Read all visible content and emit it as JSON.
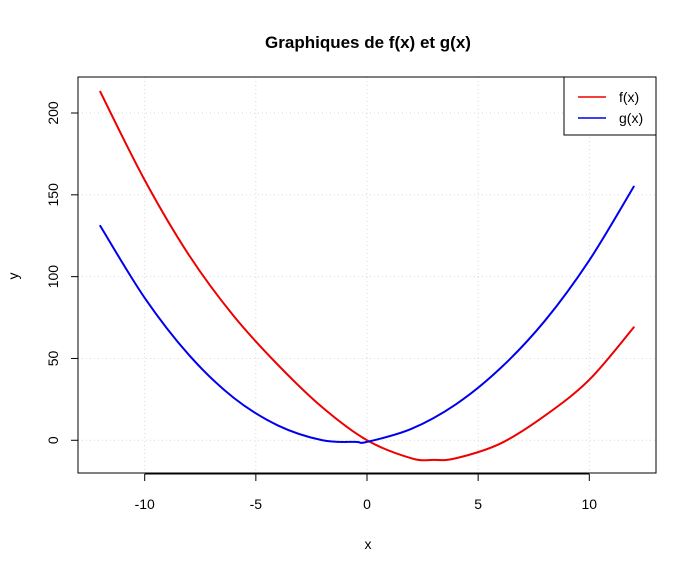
{
  "chart_data": {
    "type": "line",
    "title": "Graphiques de f(x) et g(x)",
    "xlabel": "x",
    "ylabel": "y",
    "xlim": [
      -13,
      13
    ],
    "ylim": [
      -20,
      222
    ],
    "xticks": [
      -10,
      -5,
      0,
      5,
      10
    ],
    "yticks": [
      0,
      50,
      100,
      150,
      200
    ],
    "grid": true,
    "legend_position": "top-right",
    "series": [
      {
        "name": "f(x)",
        "color": "#ee0000",
        "x": [
          -12,
          -10,
          -8,
          -6,
          -4,
          -2,
          0,
          2,
          3,
          4,
          6,
          8,
          10,
          12
        ],
        "y": [
          213,
          159,
          113,
          76,
          46,
          20,
          0,
          -11,
          -12,
          -11,
          -2,
          15,
          37,
          69
        ]
      },
      {
        "name": "g(x)",
        "color": "#0000ee",
        "x": [
          -12,
          -10,
          -8,
          -6,
          -4,
          -2,
          -0.5,
          0,
          2,
          4,
          6,
          8,
          10,
          12
        ],
        "y": [
          131,
          87,
          52,
          26,
          9,
          0,
          -1,
          -1,
          7,
          22,
          44,
          73,
          110,
          155
        ]
      }
    ]
  }
}
